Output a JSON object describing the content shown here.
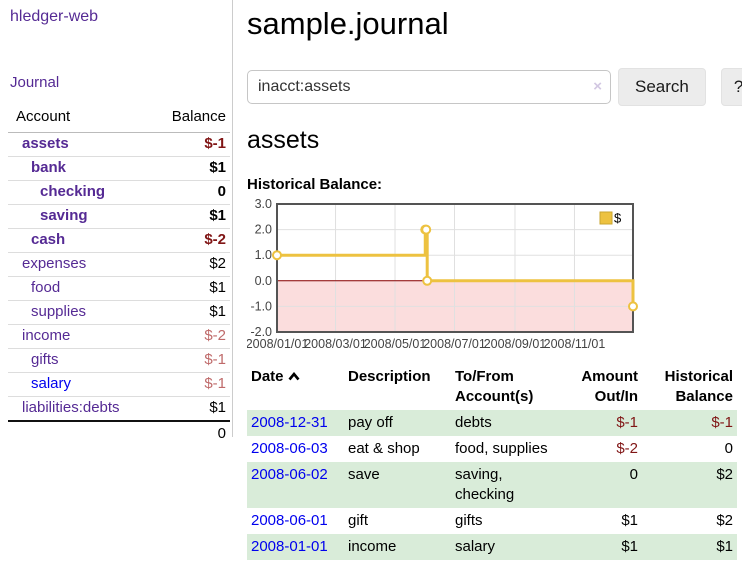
{
  "colors": {
    "link_purple": "#552a94",
    "link_blue": "#0000ee",
    "negative_dark": "#801515",
    "negative_light": "#bf6a6a",
    "row_green": "#d9ecd9",
    "chart_gold": "#EDC240"
  },
  "brand": "hledger-web",
  "sidebar": {
    "journal_link": "Journal",
    "columns": {
      "account": "Account",
      "balance": "Balance"
    },
    "accounts": [
      {
        "name": "assets",
        "level": 1,
        "bold": true,
        "balance": "$-1",
        "balance_style": "neg"
      },
      {
        "name": "bank",
        "level": 2,
        "bold": true,
        "balance": "$1",
        "balance_style": "pos"
      },
      {
        "name": "checking",
        "level": 3,
        "bold": true,
        "balance": "0",
        "balance_style": "pos"
      },
      {
        "name": "saving",
        "level": 3,
        "bold": true,
        "balance": "$1",
        "balance_style": "pos"
      },
      {
        "name": "cash",
        "level": 2,
        "bold": true,
        "balance": "$-2",
        "balance_style": "neg"
      },
      {
        "name": "expenses",
        "level": 1,
        "bold": false,
        "balance": "$2",
        "balance_style": "pos"
      },
      {
        "name": "food",
        "level": 2,
        "bold": false,
        "balance": "$1",
        "balance_style": "pos"
      },
      {
        "name": "supplies",
        "level": 2,
        "bold": false,
        "balance": "$1",
        "balance_style": "pos"
      },
      {
        "name": "income",
        "level": 1,
        "bold": false,
        "balance": "$-2",
        "balance_style": "neg-light"
      },
      {
        "name": "gifts",
        "level": 2,
        "bold": false,
        "balance": "$-1",
        "balance_style": "neg-light"
      },
      {
        "name": "salary",
        "level": 2,
        "bold": false,
        "balance": "$-1",
        "balance_style": "neg-light",
        "variant": "blue"
      },
      {
        "name": "liabilities:debts",
        "level": 1,
        "bold": false,
        "balance": "$1",
        "balance_style": "pos"
      }
    ],
    "total": "0"
  },
  "header": {
    "title": "sample.journal"
  },
  "search": {
    "value": "inacct:assets",
    "clear_icon": "×",
    "button_label": "Search",
    "help_label": "?"
  },
  "account_page": {
    "title": "assets",
    "chart_label": "Historical Balance:"
  },
  "chart_data": {
    "type": "line",
    "line_style": "step",
    "title": "Historical Balance:",
    "series": [
      {
        "name": "$",
        "color": "#EDC240",
        "points": [
          [
            "2008-01-01",
            1.0
          ],
          [
            "2008-06-01",
            2.0
          ],
          [
            "2008-06-02",
            2.0
          ],
          [
            "2008-06-03",
            0.0
          ],
          [
            "2008-12-31",
            -1.0
          ]
        ]
      }
    ],
    "x_domain": [
      "2008-01-01",
      "2008-12-31"
    ],
    "x_ticks": [
      {
        "date": "2008-01-01",
        "label": "2008/01/01"
      },
      {
        "date": "2008-03-01",
        "label": "2008/03/01"
      },
      {
        "date": "2008-05-01",
        "label": "2008/05/01"
      },
      {
        "date": "2008-07-01",
        "label": "2008/07/01"
      },
      {
        "date": "2008-09-01",
        "label": "2008/09/01"
      },
      {
        "date": "2008-11-01",
        "label": "2008/11/01"
      }
    ],
    "y_ticks": [
      {
        "value": 3,
        "label": "3.0"
      },
      {
        "value": 2,
        "label": "2.0"
      },
      {
        "value": 1,
        "label": "1.0"
      },
      {
        "value": 0,
        "label": "0.0"
      },
      {
        "value": -1,
        "label": "-1.0"
      },
      {
        "value": -2,
        "label": "-2.0"
      }
    ],
    "ylim": [
      -2,
      3
    ],
    "grid": true,
    "legend": {
      "label": "$",
      "position": "top-right"
    },
    "zero_line_color": "#8b0000",
    "negative_region_color": "#fbdddd"
  },
  "register": {
    "columns": {
      "date": "Date",
      "description": "Description",
      "tofrom_line1": "To/From",
      "tofrom_line2": "Account(s)",
      "amount_line1": "Amount",
      "amount_line2": "Out/In",
      "balance_line1": "Historical",
      "balance_line2": "Balance"
    },
    "rows": [
      {
        "date": "2008-12-31",
        "description": "pay off",
        "accounts": [
          "debts"
        ],
        "amount": "$-1",
        "amount_style": "neg",
        "balance": "$-1",
        "balance_style": "neg"
      },
      {
        "date": "2008-06-03",
        "description": "eat & shop",
        "accounts": [
          "food, supplies"
        ],
        "amount": "$-2",
        "amount_style": "neg",
        "balance": "0",
        "balance_style": "pos"
      },
      {
        "date": "2008-06-02",
        "description": "save",
        "accounts": [
          "saving,",
          "checking"
        ],
        "amount": "0",
        "amount_style": "pos",
        "balance": "$2",
        "balance_style": "pos"
      },
      {
        "date": "2008-06-01",
        "description": "gift",
        "accounts": [
          "gifts"
        ],
        "amount": "$1",
        "amount_style": "pos",
        "balance": "$2",
        "balance_style": "pos"
      },
      {
        "date": "2008-01-01",
        "description": "income",
        "accounts": [
          "salary"
        ],
        "amount": "$1",
        "amount_style": "pos",
        "balance": "$1",
        "balance_style": "pos"
      }
    ]
  }
}
